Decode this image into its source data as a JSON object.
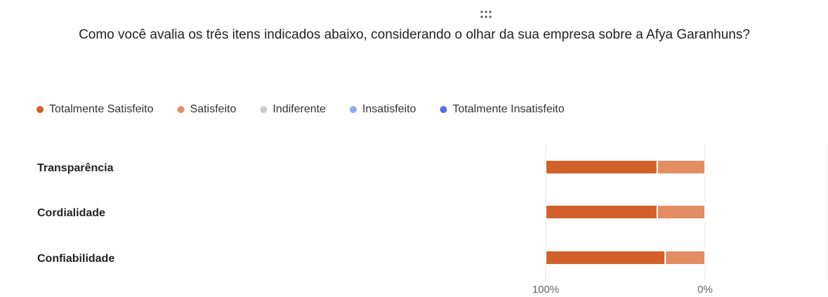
{
  "chart_data": {
    "type": "stacked_barh",
    "title": "Como você avalia os três itens indicados abaixo, considerando o olhar da sua empresa sobre a Afya Garanhuns?",
    "categories": [
      "Transparência",
      "Cordialidade",
      "Confiabilidade"
    ],
    "series": [
      {
        "name": "Totalmente Satisfeito",
        "color": "#d2602a",
        "values": [
          70,
          70,
          75
        ]
      },
      {
        "name": "Satisfeito",
        "color": "#e38d62",
        "values": [
          30,
          30,
          25
        ]
      },
      {
        "name": "Indiferente",
        "color": "#cccccc",
        "values": [
          0,
          0,
          0
        ]
      },
      {
        "name": "Insatisfeito",
        "color": "#93a7ef",
        "values": [
          0,
          0,
          0
        ]
      },
      {
        "name": "Totalmente Insatisfeito",
        "color": "#5a6fe3",
        "values": [
          0,
          0,
          0
        ]
      }
    ],
    "xlim": [
      100,
      0
    ],
    "xticks": [
      {
        "value": 100,
        "label": "100%"
      },
      {
        "value": 0,
        "label": "0%"
      }
    ],
    "grid": true,
    "legend": "top"
  }
}
